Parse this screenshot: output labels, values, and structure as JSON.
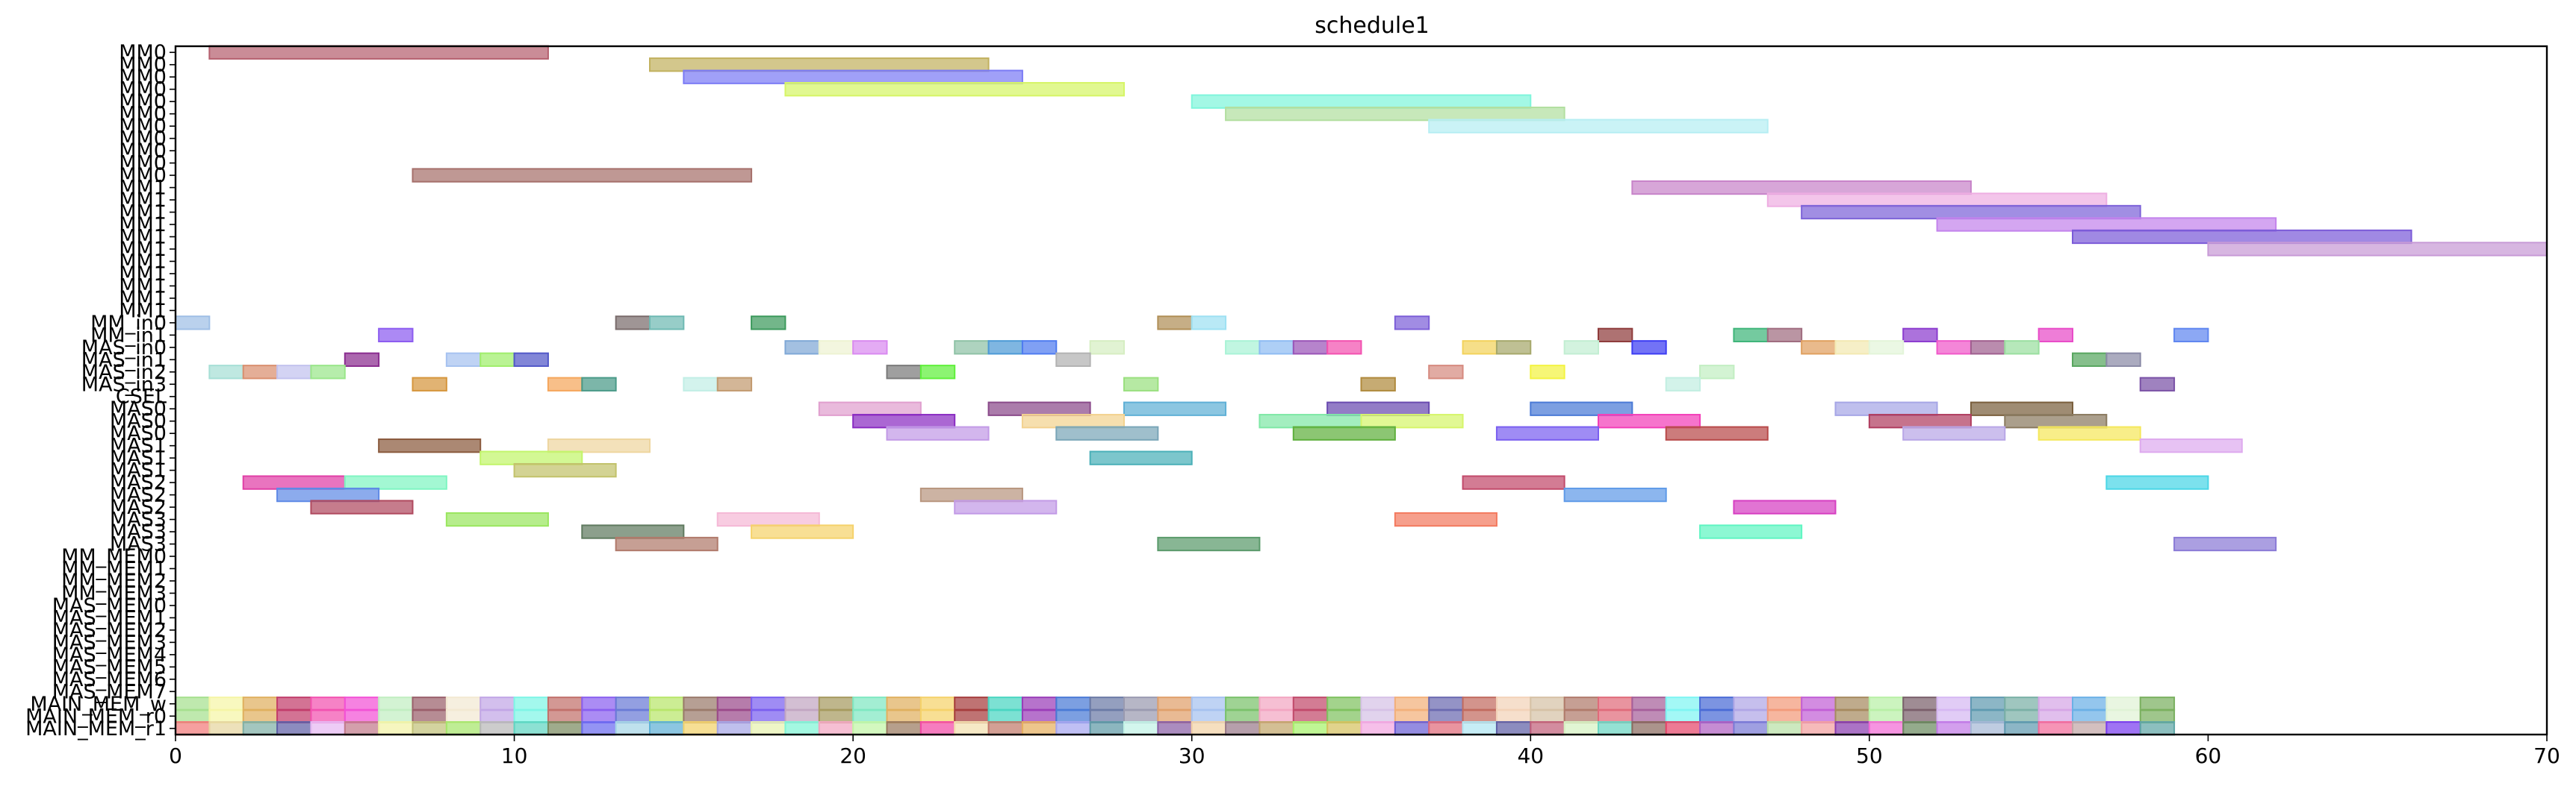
{
  "chart_data": {
    "type": "gantt",
    "title": "schedule1",
    "xlim": [
      0,
      70
    ],
    "x_ticks": [
      0,
      10,
      20,
      30,
      40,
      50,
      60,
      70
    ],
    "grid": false,
    "rows": [
      "MM0",
      "MM0",
      "MM0",
      "MM0",
      "MM0",
      "MM0",
      "MM0",
      "MM0",
      "MM0",
      "MM0",
      "MM0",
      "MM1",
      "MM1",
      "MM1",
      "MM1",
      "MM1",
      "MM1",
      "MM1",
      "MM1",
      "MM1",
      "MM1",
      "MM1",
      "MM_in0",
      "MM_in1",
      "MAS_in0",
      "MAS_in1",
      "MAS_in2",
      "MAS_in3",
      "CSEL",
      "MAS0",
      "MAS0",
      "MAS0",
      "MAS1",
      "MAS1",
      "MAS1",
      "MAS2",
      "MAS2",
      "MAS2",
      "MAS3",
      "MAS3",
      "MAS3",
      "MM_MEM0",
      "MM_MEM1",
      "MM_MEM2",
      "MM_MEM3",
      "MAS_MEM0",
      "MAS_MEM1",
      "MAS_MEM2",
      "MAS_MEM3",
      "MAS_MEM4",
      "MAS_MEM5",
      "MAS_MEM6",
      "MAS_MEM7",
      "MAIN_MEM_w",
      "MAIN_MEM_r0",
      "MAIN_MEM_r1"
    ],
    "bars": [
      {
        "row": 0,
        "start": 1,
        "end": 11,
        "color": "#b5606f"
      },
      {
        "row": 1,
        "start": 14,
        "end": 24,
        "color": "#c2b15f"
      },
      {
        "row": 2,
        "start": 15,
        "end": 25,
        "color": "#7b7bf5"
      },
      {
        "row": 3,
        "start": 18,
        "end": 28,
        "color": "#d6f566"
      },
      {
        "row": 4,
        "start": 30,
        "end": 40,
        "color": "#7ff5db"
      },
      {
        "row": 5,
        "start": 31,
        "end": 41,
        "color": "#b2dfa0"
      },
      {
        "row": 6,
        "start": 37,
        "end": 47,
        "color": "#b6eef3"
      },
      {
        "row": 10,
        "start": 7,
        "end": 17,
        "color": "#a6706b"
      },
      {
        "row": 11,
        "start": 43,
        "end": 53,
        "color": "#c783c9"
      },
      {
        "row": 12,
        "start": 47,
        "end": 57,
        "color": "#eeaee2"
      },
      {
        "row": 13,
        "start": 48,
        "end": 58,
        "color": "#7d63d8"
      },
      {
        "row": 14,
        "start": 52,
        "end": 62,
        "color": "#c383ec"
      },
      {
        "row": 15,
        "start": 56,
        "end": 66,
        "color": "#7b5bd8"
      },
      {
        "row": 16,
        "start": 60,
        "end": 70,
        "color": "#c79ad6"
      },
      {
        "row": 22,
        "start": 0,
        "end": 1,
        "color": "#9fbfe6"
      },
      {
        "row": 22,
        "start": 13,
        "end": 14,
        "color": "#7a6c6c"
      },
      {
        "row": 22,
        "start": 14,
        "end": 15,
        "color": "#6fbab3"
      },
      {
        "row": 22,
        "start": 17,
        "end": 18,
        "color": "#3d9a5d"
      },
      {
        "row": 22,
        "start": 29,
        "end": 30,
        "color": "#b08f57"
      },
      {
        "row": 22,
        "start": 30,
        "end": 31,
        "color": "#9ee1f3"
      },
      {
        "row": 22,
        "start": 36,
        "end": 37,
        "color": "#7d5fd8"
      },
      {
        "row": 23,
        "start": 6,
        "end": 7,
        "color": "#8c5cf0"
      },
      {
        "row": 23,
        "start": 42,
        "end": 43,
        "color": "#8f3b3b"
      },
      {
        "row": 23,
        "start": 46,
        "end": 47,
        "color": "#3fb57a"
      },
      {
        "row": 23,
        "start": 47,
        "end": 48,
        "color": "#9f6c7f"
      },
      {
        "row": 23,
        "start": 51,
        "end": 52,
        "color": "#8c3ccf"
      },
      {
        "row": 23,
        "start": 55,
        "end": 56,
        "color": "#e84bc8"
      },
      {
        "row": 23,
        "start": 59,
        "end": 60,
        "color": "#5f86f0"
      },
      {
        "row": 24,
        "start": 18,
        "end": 19,
        "color": "#7fa8d6"
      },
      {
        "row": 24,
        "start": 19,
        "end": 20,
        "color": "#eef3d2"
      },
      {
        "row": 24,
        "start": 20,
        "end": 21,
        "color": "#d98af0"
      },
      {
        "row": 24,
        "start": 23,
        "end": 24,
        "color": "#8fc2a6"
      },
      {
        "row": 24,
        "start": 24,
        "end": 25,
        "color": "#4d9ad6"
      },
      {
        "row": 24,
        "start": 25,
        "end": 26,
        "color": "#4f7cf0"
      },
      {
        "row": 24,
        "start": 27,
        "end": 28,
        "color": "#d6eec2"
      },
      {
        "row": 24,
        "start": 31,
        "end": 32,
        "color": "#a9f3d6"
      },
      {
        "row": 24,
        "start": 32,
        "end": 33,
        "color": "#8fbcf3"
      },
      {
        "row": 24,
        "start": 33,
        "end": 34,
        "color": "#9a55b8"
      },
      {
        "row": 24,
        "start": 34,
        "end": 35,
        "color": "#f352b0"
      },
      {
        "row": 24,
        "start": 38,
        "end": 39,
        "color": "#f3d25c"
      },
      {
        "row": 24,
        "start": 39,
        "end": 40,
        "color": "#a6a86b"
      },
      {
        "row": 24,
        "start": 41,
        "end": 42,
        "color": "#c2eed2"
      },
      {
        "row": 24,
        "start": 43,
        "end": 44,
        "color": "#3d3df3"
      },
      {
        "row": 24,
        "start": 48,
        "end": 49,
        "color": "#e0a05f"
      },
      {
        "row": 24,
        "start": 49,
        "end": 50,
        "color": "#f3e9b2"
      },
      {
        "row": 24,
        "start": 50,
        "end": 51,
        "color": "#e3f5d9"
      },
      {
        "row": 24,
        "start": 52,
        "end": 53,
        "color": "#f058c9"
      },
      {
        "row": 24,
        "start": 53,
        "end": 54,
        "color": "#a0608f"
      },
      {
        "row": 24,
        "start": 54,
        "end": 55,
        "color": "#9adfa0"
      },
      {
        "row": 25,
        "start": 5,
        "end": 6,
        "color": "#8a2c8f"
      },
      {
        "row": 25,
        "start": 8,
        "end": 9,
        "color": "#a6c2f0"
      },
      {
        "row": 25,
        "start": 9,
        "end": 10,
        "color": "#a0ee6b"
      },
      {
        "row": 25,
        "start": 10,
        "end": 11,
        "color": "#5258c8"
      },
      {
        "row": 25,
        "start": 26,
        "end": 27,
        "color": "#b2b2b2"
      },
      {
        "row": 25,
        "start": 56,
        "end": 57,
        "color": "#58a65f"
      },
      {
        "row": 25,
        "start": 57,
        "end": 58,
        "color": "#8a8aa6"
      },
      {
        "row": 26,
        "start": 1,
        "end": 2,
        "color": "#a6dfd6"
      },
      {
        "row": 26,
        "start": 2,
        "end": 3,
        "color": "#d98f6f"
      },
      {
        "row": 26,
        "start": 3,
        "end": 4,
        "color": "#c2c2ee"
      },
      {
        "row": 26,
        "start": 4,
        "end": 5,
        "color": "#9ae68a"
      },
      {
        "row": 26,
        "start": 21,
        "end": 22,
        "color": "#7a7a7a"
      },
      {
        "row": 26,
        "start": 22,
        "end": 23,
        "color": "#5ff03b"
      },
      {
        "row": 26,
        "start": 37,
        "end": 38,
        "color": "#d68a7f"
      },
      {
        "row": 26,
        "start": 40,
        "end": 41,
        "color": "#f3f341"
      },
      {
        "row": 26,
        "start": 45,
        "end": 46,
        "color": "#c2eec2"
      },
      {
        "row": 27,
        "start": 7,
        "end": 8,
        "color": "#d6963d"
      },
      {
        "row": 27,
        "start": 11,
        "end": 12,
        "color": "#f5a65c"
      },
      {
        "row": 27,
        "start": 12,
        "end": 13,
        "color": "#4a9a88"
      },
      {
        "row": 27,
        "start": 15,
        "end": 16,
        "color": "#c2eee6"
      },
      {
        "row": 27,
        "start": 16,
        "end": 17,
        "color": "#c29a6f"
      },
      {
        "row": 27,
        "start": 28,
        "end": 29,
        "color": "#9ae07f"
      },
      {
        "row": 27,
        "start": 35,
        "end": 36,
        "color": "#b08a3d"
      },
      {
        "row": 27,
        "start": 44,
        "end": 45,
        "color": "#c2eee2"
      },
      {
        "row": 27,
        "start": 58,
        "end": 59,
        "color": "#7a52a6"
      },
      {
        "row": 29,
        "start": 19,
        "end": 22,
        "color": "#e09fce"
      },
      {
        "row": 29,
        "start": 24,
        "end": 27,
        "color": "#8a4a8a"
      },
      {
        "row": 29,
        "start": 28,
        "end": 31,
        "color": "#5fb0d6"
      },
      {
        "row": 29,
        "start": 34,
        "end": 37,
        "color": "#6a4ab0"
      },
      {
        "row": 29,
        "start": 40,
        "end": 43,
        "color": "#4a7ad6"
      },
      {
        "row": 29,
        "start": 49,
        "end": 52,
        "color": "#a6a6e6"
      },
      {
        "row": 29,
        "start": 53,
        "end": 56,
        "color": "#7a5f3d"
      },
      {
        "row": 30,
        "start": 20,
        "end": 23,
        "color": "#8a2cc2"
      },
      {
        "row": 30,
        "start": 25,
        "end": 28,
        "color": "#f3d28f"
      },
      {
        "row": 30,
        "start": 32,
        "end": 35,
        "color": "#7fe8a6"
      },
      {
        "row": 30,
        "start": 35,
        "end": 38,
        "color": "#d6f56b"
      },
      {
        "row": 30,
        "start": 42,
        "end": 45,
        "color": "#f33fb8"
      },
      {
        "row": 30,
        "start": 50,
        "end": 53,
        "color": "#b03d5f"
      },
      {
        "row": 30,
        "start": 54,
        "end": 57,
        "color": "#8a7a5f"
      },
      {
        "row": 31,
        "start": 21,
        "end": 24,
        "color": "#c29ae6"
      },
      {
        "row": 31,
        "start": 26,
        "end": 29,
        "color": "#7aa6b8"
      },
      {
        "row": 31,
        "start": 33,
        "end": 36,
        "color": "#5fb03d"
      },
      {
        "row": 31,
        "start": 39,
        "end": 42,
        "color": "#7a5ff0"
      },
      {
        "row": 31,
        "start": 44,
        "end": 47,
        "color": "#b84a4a"
      },
      {
        "row": 31,
        "start": 51,
        "end": 54,
        "color": "#b8a6e6"
      },
      {
        "row": 31,
        "start": 55,
        "end": 58,
        "color": "#f5e85c"
      },
      {
        "row": 32,
        "start": 6,
        "end": 9,
        "color": "#8a5a3d"
      },
      {
        "row": 32,
        "start": 11,
        "end": 14,
        "color": "#eed6a0"
      },
      {
        "row": 32,
        "start": 58,
        "end": 61,
        "color": "#deaaee"
      },
      {
        "row": 33,
        "start": 9,
        "end": 12,
        "color": "#c2f56b"
      },
      {
        "row": 33,
        "start": 27,
        "end": 30,
        "color": "#4ab0b8"
      },
      {
        "row": 34,
        "start": 10,
        "end": 13,
        "color": "#c2c26b"
      },
      {
        "row": 35,
        "start": 2,
        "end": 5,
        "color": "#e03fa6"
      },
      {
        "row": 35,
        "start": 5,
        "end": 8,
        "color": "#7ff5c2"
      },
      {
        "row": 35,
        "start": 38,
        "end": 41,
        "color": "#c24a6b"
      },
      {
        "row": 35,
        "start": 57,
        "end": 60,
        "color": "#4ad6e6"
      },
      {
        "row": 36,
        "start": 3,
        "end": 6,
        "color": "#5f8ae6"
      },
      {
        "row": 36,
        "start": 22,
        "end": 25,
        "color": "#b8967f"
      },
      {
        "row": 36,
        "start": 41,
        "end": 44,
        "color": "#5f9ae8"
      },
      {
        "row": 37,
        "start": 4,
        "end": 7,
        "color": "#b04a5f"
      },
      {
        "row": 37,
        "start": 23,
        "end": 26,
        "color": "#c29ae6"
      },
      {
        "row": 37,
        "start": 46,
        "end": 49,
        "color": "#d63fc2"
      },
      {
        "row": 38,
        "start": 8,
        "end": 11,
        "color": "#9ae65f"
      },
      {
        "row": 38,
        "start": 16,
        "end": 19,
        "color": "#f5b8d6"
      },
      {
        "row": 38,
        "start": 36,
        "end": 39,
        "color": "#f37a5f"
      },
      {
        "row": 39,
        "start": 12,
        "end": 15,
        "color": "#5f7a5f"
      },
      {
        "row": 39,
        "start": 17,
        "end": 20,
        "color": "#f5d26b"
      },
      {
        "row": 39,
        "start": 45,
        "end": 48,
        "color": "#5ff5c2"
      },
      {
        "row": 40,
        "start": 13,
        "end": 16,
        "color": "#b07a6b"
      },
      {
        "row": 40,
        "start": 29,
        "end": 32,
        "color": "#5a9a6b"
      },
      {
        "row": 40,
        "start": 59,
        "end": 62,
        "color": "#8a7ad6"
      }
    ],
    "memory_rows": {
      "MAIN_MEM_w": [
        "#a6e08f",
        "#f5f5a6",
        "#e0b05f",
        "#c23d6b",
        "#f352b0",
        "#f352d6",
        "#c2eec2",
        "#9a5f6b",
        "#f3e9d2",
        "#c2a6e6",
        "#7ff5e6",
        "#c2706b",
        "#8a5ff0",
        "#6a7ad6",
        "#b8e66b",
        "#9a7a6b",
        "#9a4a8a",
        "#7a5ff0",
        "#c2a6c2",
        "#a69a5f",
        "#7fe8c2",
        "#e0b05f",
        "#f5d26b",
        "#a63d3d",
        "#4ad6c2",
        "#9a3db8",
        "#4a7ad6",
        "#6b7aa6",
        "#9a9ab0",
        "#e0a06b",
        "#a6c2f0",
        "#7ac26b",
        "#f3a6c2",
        "#c24a6b",
        "#7fc25f",
        "#d6c2e6",
        "#f3b07a",
        "#6b6ab0",
        "#c26b5f",
        "#f3d2b8",
        "#d6c2a6",
        "#b07a6b",
        "#e06b7a",
        "#a65f9a",
        "#7ff5f3",
        "#4a6bd6",
        "#b0a6e6",
        "#f39a7a",
        "#c25fd6",
        "#a68a5f",
        "#b8f0a6",
        "#7a5f6b",
        "#d6b8f3",
        "#5f9ab0",
        "#7ab0a6",
        "#d6a6e6",
        "#6bb0e6",
        "#e0f3d6",
        "#7ab05f"
      ],
      "MAIN_MEM_r0": [
        "#a6e08f",
        "#f5f5a6",
        "#e0b05f",
        "#c23d6b",
        "#f352b0",
        "#f352d6",
        "#c2eec2",
        "#9a5f6b",
        "#f3e9d2",
        "#c2a6e6",
        "#7ff5e6",
        "#c2706b",
        "#8a5ff0",
        "#6a7ad6",
        "#b8e66b",
        "#9a7a6b",
        "#9a4a8a",
        "#7a5ff0",
        "#c2a6c2",
        "#a69a5f",
        "#7fe8c2",
        "#e0b05f",
        "#f5d26b",
        "#a63d3d",
        "#4ad6c2",
        "#9a3db8",
        "#4a7ad6",
        "#6b7aa6",
        "#9a9ab0",
        "#e0a06b",
        "#a6c2f0",
        "#7ac26b",
        "#f3a6c2",
        "#c24a6b",
        "#7fc25f",
        "#d6c2e6",
        "#f3b07a",
        "#6b6ab0",
        "#c26b5f",
        "#f3d2b8",
        "#d6c2a6",
        "#b07a6b",
        "#e06b7a",
        "#a65f9a",
        "#7ff5f3",
        "#4a6bd6",
        "#b0a6e6",
        "#f39a7a",
        "#c25fd6",
        "#a68a5f",
        "#b8f0a6",
        "#7a5f6b",
        "#d6b8f3",
        "#5f9ab0",
        "#7ab0a6",
        "#d6a6e6",
        "#6bb0e6",
        "#e0f3d6",
        "#7ab05f"
      ],
      "MAIN_MEM_r1": [
        "#f37a7a",
        "#e6d6a0",
        "#7fb0a6",
        "#5f5fa6",
        "#e6b8f3",
        "#c27a8a",
        "#f3f3a6",
        "#c2c27a",
        "#a6e66b",
        "#b8b8b8",
        "#5fd6c2",
        "#7a8a5f",
        "#6b6bf0",
        "#a6d6e6",
        "#5fb0d6",
        "#f3d26b",
        "#a6a6e6",
        "#e8f3b0",
        "#7ff5d6",
        "#f3a6c2",
        "#c2f5a6",
        "#9a7a5f",
        "#f34aa6",
        "#f3e0b0",
        "#c27a6b",
        "#e6b05f",
        "#a6a6f0",
        "#5f9aa6",
        "#c2f3e6",
        "#8a5fa6",
        "#f3d2a6",
        "#9a7a8a",
        "#c2a66b",
        "#a6f36b",
        "#d6c25f",
        "#f3a6e0",
        "#6b5fd6",
        "#e06b7a",
        "#b0e6f3",
        "#5f5fa6",
        "#c25f7a",
        "#d6f3c2",
        "#6bd6c2",
        "#8a6b5f",
        "#e6466b",
        "#b05fc2",
        "#7a7ad6",
        "#b8e0a6",
        "#f3a0a0",
        "#8a3db0",
        "#f36bd6",
        "#6b8a5f",
        "#c27ae6",
        "#a6b8d6",
        "#5f9ab0",
        "#f36b9a",
        "#c2a6a6",
        "#7a3df0",
        "#5fa6a6"
      ]
    }
  }
}
